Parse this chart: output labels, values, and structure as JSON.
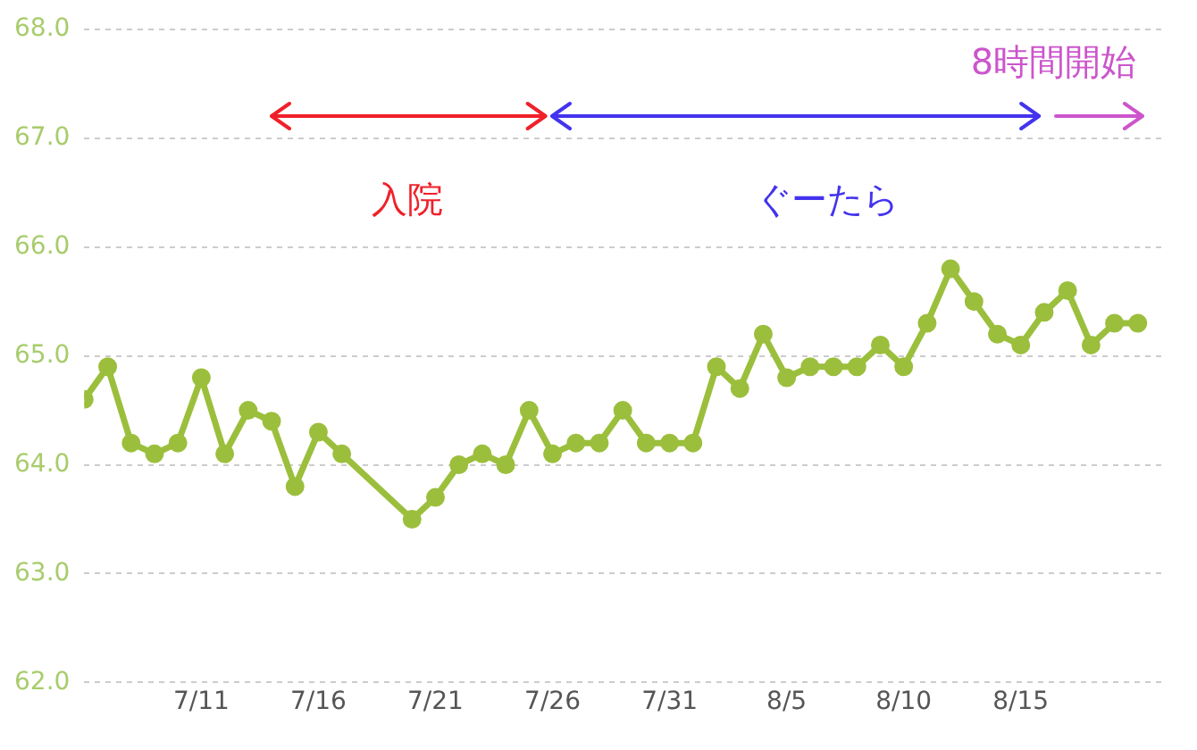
{
  "chart_data": {
    "type": "line",
    "x": [
      "--07-06",
      "--07-07",
      "--07-08",
      "--07-09",
      "--07-10",
      "--07-11",
      "--07-12",
      "--07-13",
      "--07-14",
      "--07-15",
      "--07-16",
      "--07-17",
      "--07-20",
      "--07-21",
      "--07-22",
      "--07-23",
      "--07-24",
      "--07-25",
      "--07-26",
      "--07-27",
      "--07-28",
      "--07-29",
      "--07-30",
      "--07-31",
      "--08-01",
      "--08-02",
      "--08-03",
      "--08-04",
      "--08-05",
      "--08-06",
      "--08-07",
      "--08-08",
      "--08-09",
      "--08-10",
      "--08-11",
      "--08-12",
      "--08-13",
      "--08-14",
      "--08-15",
      "--08-16",
      "--08-17",
      "--08-18",
      "--08-19",
      "--08-20"
    ],
    "series": [
      {
        "color": "#9bbf3c",
        "values": [
          64.6,
          64.9,
          64.2,
          64.1,
          64.2,
          64.8,
          64.1,
          64.5,
          64.4,
          63.8,
          64.3,
          64.1,
          63.5,
          63.7,
          64.0,
          64.1,
          64.0,
          64.5,
          64.1,
          64.2,
          64.2,
          64.5,
          64.2,
          64.2,
          64.2,
          64.9,
          64.7,
          65.2,
          64.8,
          64.9,
          64.9,
          64.9,
          65.1,
          64.9,
          65.3,
          65.8,
          65.5,
          65.2,
          65.1,
          65.4,
          65.6,
          65.1,
          65.3,
          65.3
        ]
      }
    ],
    "xlim": [
      "--07-06",
      "--08-21"
    ],
    "xticks": [
      {
        "value": "--07-11",
        "label": "7/11"
      },
      {
        "value": "--07-16",
        "label": "7/16"
      },
      {
        "value": "--07-21",
        "label": "7/21"
      },
      {
        "value": "--07-26",
        "label": "7/26"
      },
      {
        "value": "--07-31",
        "label": "7/31"
      },
      {
        "value": "--08-05",
        "label": "8/5"
      },
      {
        "value": "--08-10",
        "label": "8/10"
      },
      {
        "value": "--08-15",
        "label": "8/15"
      }
    ],
    "ylim": [
      62,
      68
    ],
    "yticks": [
      {
        "value": 62,
        "label": "62.0"
      },
      {
        "value": 63,
        "label": "63.0"
      },
      {
        "value": 64,
        "label": "64.0"
      },
      {
        "value": 65,
        "label": "65.0"
      },
      {
        "value": 66,
        "label": "66.0"
      },
      {
        "value": 67,
        "label": "67.0"
      },
      {
        "value": 68,
        "label": "68.0"
      }
    ],
    "grid": "y",
    "legend": false,
    "marker": "circle",
    "line_style": "solid",
    "annotations": [
      "入院",
      "ぐーたら",
      "8時間開始"
    ]
  }
}
